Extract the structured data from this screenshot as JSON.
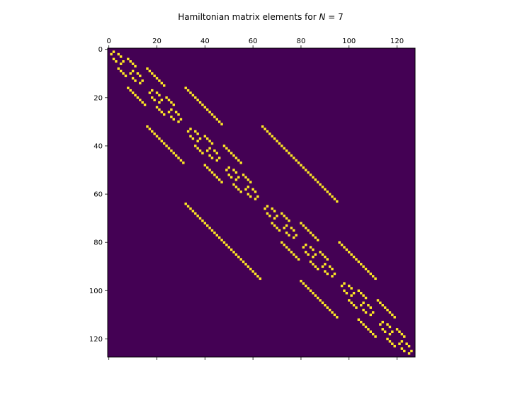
{
  "chart_data": {
    "type": "heatmap",
    "title_prefix": "Hamiltonian matrix elements for ",
    "title_var": "N",
    "title_eq": " = 7",
    "N": 7,
    "size": 128,
    "colormap": {
      "zero": "#440154",
      "nonzero": "#fde725"
    },
    "xticks": [
      0,
      20,
      40,
      60,
      80,
      100,
      120
    ],
    "yticks": [
      0,
      20,
      40,
      60,
      80,
      100,
      120
    ],
    "xticks_position": "top",
    "grid": false,
    "legend": "none"
  }
}
